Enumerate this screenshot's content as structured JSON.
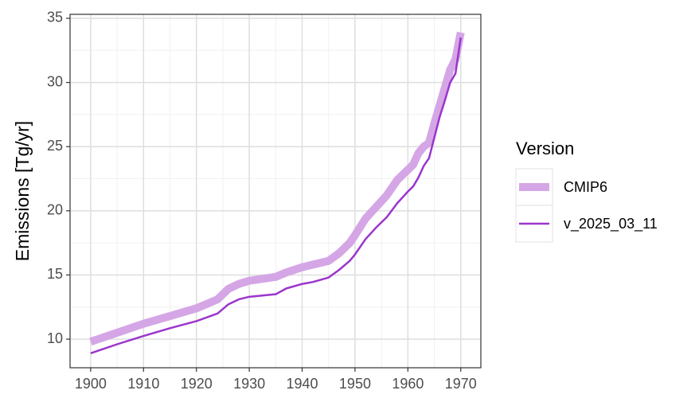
{
  "chart_data": {
    "type": "line",
    "y_label": "Emissions [Tg/yr]",
    "legend_title": "Version",
    "legend_position": "right",
    "x": [
      1900,
      1905,
      1910,
      1915,
      1920,
      1924,
      1926,
      1928,
      1930,
      1935,
      1937,
      1940,
      1942,
      1945,
      1947,
      1949,
      1950,
      1952,
      1954,
      1956,
      1958,
      1960,
      1961,
      1962,
      1963,
      1964,
      1965,
      1966,
      1967,
      1968,
      1969,
      1970
    ],
    "series": [
      {
        "name": "CMIP6",
        "color": "#d5a6e6",
        "line_width": 10,
        "values": [
          9.8,
          10.5,
          11.2,
          11.8,
          12.4,
          13.1,
          13.9,
          14.3,
          14.55,
          14.85,
          15.2,
          15.6,
          15.8,
          16.1,
          16.7,
          17.5,
          18.1,
          19.4,
          20.3,
          21.2,
          22.4,
          23.2,
          23.6,
          24.5,
          25.0,
          25.3,
          26.8,
          28.2,
          29.6,
          31.0,
          31.8,
          33.9
        ]
      },
      {
        "name": "v_2025_03_11",
        "color": "#9b35cc",
        "line_width": 2.5,
        "values": [
          8.9,
          9.6,
          10.25,
          10.85,
          11.4,
          12.0,
          12.7,
          13.1,
          13.3,
          13.5,
          13.95,
          14.3,
          14.45,
          14.8,
          15.4,
          16.1,
          16.6,
          17.8,
          18.7,
          19.5,
          20.6,
          21.5,
          21.9,
          22.6,
          23.5,
          24.1,
          25.7,
          27.3,
          28.6,
          30.0,
          30.7,
          33.5
        ]
      }
    ],
    "xlim": [
      1896.1,
      1973.8
    ],
    "ylim": [
      7.77,
      35.31
    ],
    "xticks": [
      1900,
      1910,
      1920,
      1930,
      1940,
      1950,
      1960,
      1970
    ],
    "yticks": [
      10,
      15,
      20,
      25,
      30,
      35
    ],
    "x_minor_ticks": [
      1905,
      1915,
      1925,
      1935,
      1945,
      1955,
      1965
    ],
    "y_minor_ticks": [
      12.5,
      17.5,
      22.5,
      27.5,
      32.5
    ],
    "grid": true
  }
}
